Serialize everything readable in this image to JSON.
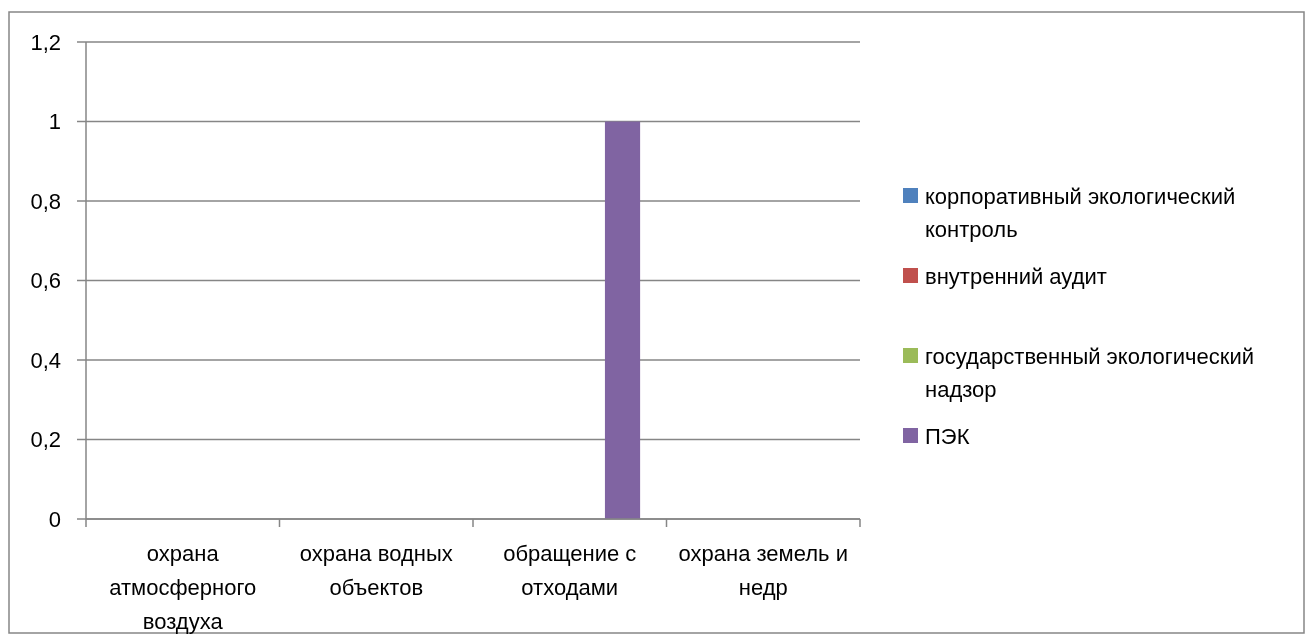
{
  "chart_data": {
    "type": "bar",
    "categories": [
      "охрана атмосферного воздуха",
      "охрана водных объектов",
      "обращение с отходами",
      "охрана земель и недр"
    ],
    "series": [
      {
        "name": "корпоративный экологический контроль",
        "color": "#4f81bd",
        "values": [
          0,
          0,
          0,
          0
        ]
      },
      {
        "name": "внутренний аудит",
        "color": "#c0504d",
        "values": [
          0,
          0,
          0,
          0
        ]
      },
      {
        "name": "государственный экологический надзор",
        "color": "#9bbb59",
        "values": [
          0,
          0,
          0,
          0
        ]
      },
      {
        "name": "ПЭК",
        "color": "#8064a2",
        "values": [
          0,
          0,
          1,
          0
        ]
      }
    ],
    "ylim": [
      0,
      1.2
    ],
    "yticks": [
      0,
      {
        "value": 0.2,
        "label": "0,2"
      },
      {
        "value": 0.4,
        "label": "0,4"
      },
      {
        "value": 0.6,
        "label": "0,6"
      },
      {
        "value": 0.8,
        "label": "0,8"
      },
      1,
      {
        "value": 1.2,
        "label": "1,2"
      }
    ],
    "grid": "y",
    "legend": "right"
  }
}
